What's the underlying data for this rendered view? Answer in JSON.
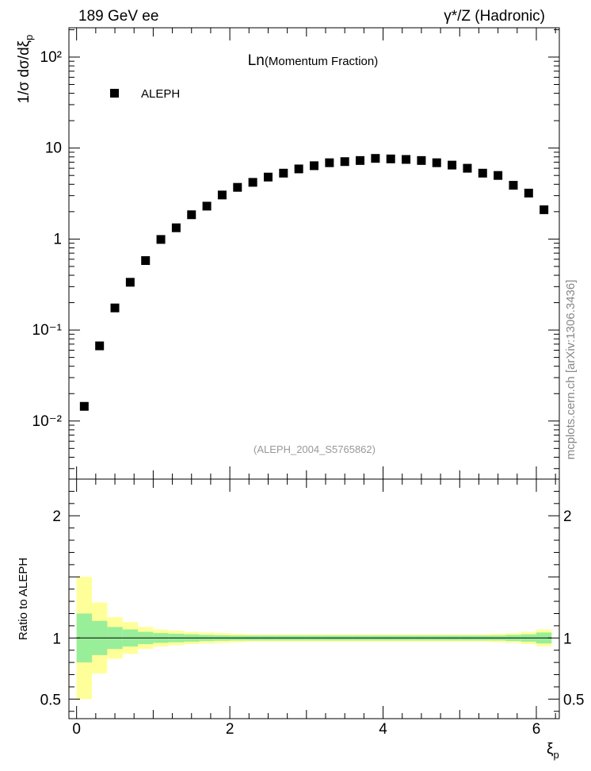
{
  "header": {
    "left_label": "189 GeV ee",
    "right_label": "γ*/Z (Hadronic)"
  },
  "watermark": "mcplots.cern.ch [arXiv:1306.3436]",
  "chart_data": [
    {
      "type": "scatter",
      "title": "Ln(Momentum Fraction)",
      "analysis_tag": "(ALEPH_2004_S5765862)",
      "ylabel": "1/σ dσ/dξp",
      "log_y": true,
      "ylim": [
        0.0023,
        210
      ],
      "xlim": [
        -0.1,
        6.3
      ],
      "y_ticks": [
        {
          "value": 0.01,
          "label": "10⁻²"
        },
        {
          "value": 0.1,
          "label": "10⁻¹"
        },
        {
          "value": 1,
          "label": "1"
        },
        {
          "value": 10,
          "label": "10"
        },
        {
          "value": 100,
          "label": "10²"
        }
      ],
      "legend": {
        "position": "top-left",
        "entries": [
          "ALEPH"
        ]
      },
      "series": [
        {
          "name": "ALEPH",
          "marker": "square",
          "color": "#000000",
          "x": [
            0.1,
            0.3,
            0.5,
            0.7,
            0.9,
            1.1,
            1.3,
            1.5,
            1.7,
            1.9,
            2.1,
            2.3,
            2.5,
            2.7,
            2.9,
            3.1,
            3.3,
            3.5,
            3.7,
            3.9,
            4.1,
            4.3,
            4.5,
            4.7,
            4.9,
            5.1,
            5.3,
            5.5,
            5.7,
            5.9,
            6.1
          ],
          "y": [
            0.0145,
            0.067,
            0.175,
            0.335,
            0.58,
            0.99,
            1.33,
            1.85,
            2.3,
            3.05,
            3.7,
            4.2,
            4.8,
            5.3,
            5.9,
            6.4,
            6.9,
            7.1,
            7.3,
            7.7,
            7.6,
            7.5,
            7.3,
            6.9,
            6.5,
            6.0,
            5.3,
            5.0,
            3.9,
            3.2,
            2.1
          ]
        }
      ]
    },
    {
      "type": "area",
      "ylabel": "Ratio to ALEPH",
      "xlabel": "ξp",
      "xlim": [
        -0.1,
        6.3
      ],
      "ylim": [
        0.34,
        2.3
      ],
      "x_ticks": [
        0,
        2,
        4,
        6
      ],
      "y_ticks": [
        0.5,
        1,
        2
      ],
      "reference_line": 1,
      "bin_edges": [
        0.0,
        0.2,
        0.4,
        0.6,
        0.8,
        1.0,
        1.2,
        1.4,
        1.6,
        1.8,
        2.0,
        2.2,
        2.4,
        2.6,
        2.8,
        3.0,
        3.2,
        3.4,
        3.6,
        3.8,
        4.0,
        4.2,
        4.4,
        4.6,
        4.8,
        5.0,
        5.2,
        5.4,
        5.6,
        5.8,
        6.0,
        6.2
      ],
      "bands": [
        {
          "kind": "total_uncertainty",
          "color": "#ffff99",
          "halfwidth": [
            0.5,
            0.29,
            0.17,
            0.13,
            0.09,
            0.07,
            0.06,
            0.05,
            0.045,
            0.04,
            0.035,
            0.03,
            0.03,
            0.03,
            0.03,
            0.03,
            0.03,
            0.03,
            0.03,
            0.03,
            0.03,
            0.03,
            0.03,
            0.03,
            0.03,
            0.03,
            0.03,
            0.035,
            0.04,
            0.05,
            0.07
          ]
        },
        {
          "kind": "statistical_uncertainty",
          "color": "#99ee99",
          "halfwidth": [
            0.2,
            0.14,
            0.09,
            0.07,
            0.05,
            0.04,
            0.035,
            0.03,
            0.025,
            0.022,
            0.02,
            0.02,
            0.02,
            0.02,
            0.02,
            0.02,
            0.02,
            0.02,
            0.02,
            0.02,
            0.02,
            0.02,
            0.02,
            0.02,
            0.02,
            0.02,
            0.02,
            0.02,
            0.025,
            0.03,
            0.045
          ]
        }
      ]
    }
  ]
}
